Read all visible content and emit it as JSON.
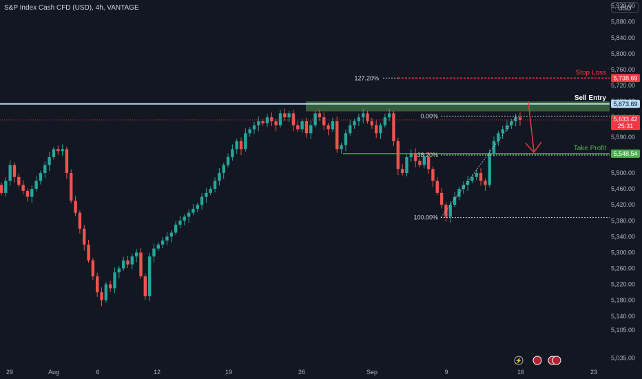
{
  "header": {
    "title": "S&P Index Cash CFD (USD), 4h, VANTAGE"
  },
  "currency": "USD",
  "colors": {
    "background": "#131722",
    "up": "#26a69a",
    "down": "#ef5350",
    "stop_loss": "#f23645",
    "take_profit": "#4caf50",
    "sell_entry": "#b2d8f5",
    "zone": "#3d6a3f",
    "current_price": "#f23645",
    "text": "#b2b5be"
  },
  "chart_data": {
    "type": "candlestick",
    "timeframe": "4h",
    "ylim": [
      5020,
      5950
    ],
    "y_ticks": [
      "5,920.00",
      "5,880.00",
      "5,840.00",
      "5,800.00",
      "5,760.00",
      "5,720.00",
      "5,680.00",
      "5,640.00",
      "5,590.00",
      "5,550.00",
      "5,500.00",
      "5,460.00",
      "5,420.00",
      "5,380.00",
      "5,340.00",
      "5,300.00",
      "5,260.00",
      "5,220.00",
      "5,180.00",
      "5,140.00",
      "5,105.00",
      "5,035.00"
    ],
    "x_ticks": [
      "29",
      "Aug",
      "6",
      "12",
      "19",
      "26",
      "Sep",
      "9",
      "16",
      "23"
    ],
    "levels": [
      {
        "name": "Stop Loss",
        "price": 5738.69,
        "label": "5,738.69"
      },
      {
        "name": "Sell Entry",
        "price": 5673.69,
        "label": "5,673.69"
      },
      {
        "name": "Take Profit",
        "price": 5548.54,
        "label": "5,548.54"
      }
    ],
    "current_price": {
      "label": "5,633.42",
      "countdown": "25:31"
    },
    "fib": [
      {
        "label": "127.20%",
        "price": 5738.69
      },
      {
        "label": "0.00%",
        "price": 5643
      },
      {
        "label": "38.20%",
        "price": 5545
      },
      {
        "label": "100.00%",
        "price": 5388
      }
    ],
    "candles_approx_close": [
      5450,
      5480,
      5520,
      5490,
      5470,
      5455,
      5440,
      5460,
      5480,
      5500,
      5520,
      5540,
      5560,
      5555,
      5560,
      5500,
      5430,
      5400,
      5360,
      5320,
      5280,
      5240,
      5200,
      5180,
      5220,
      5210,
      5250,
      5260,
      5280,
      5270,
      5290,
      5300,
      5240,
      5190,
      5290,
      5310,
      5320,
      5330,
      5340,
      5350,
      5370,
      5380,
      5390,
      5400,
      5410,
      5420,
      5440,
      5450,
      5460,
      5480,
      5500,
      5520,
      5540,
      5560,
      5580,
      5560,
      5600,
      5610,
      5620,
      5630,
      5625,
      5640,
      5630,
      5620,
      5650,
      5640,
      5650,
      5620,
      5610,
      5630,
      5600,
      5620,
      5650,
      5640,
      5620,
      5610,
      5630,
      5560,
      5570,
      5600,
      5620,
      5630,
      5640,
      5650,
      5630,
      5620,
      5600,
      5620,
      5640,
      5650,
      5580,
      5510,
      5500,
      5540,
      5550,
      5530,
      5520,
      5540,
      5510,
      5480,
      5450,
      5420,
      5390,
      5420,
      5440,
      5460,
      5470,
      5480,
      5490,
      5500,
      5480,
      5470,
      5550,
      5580,
      5600,
      5610,
      5620,
      5630,
      5640,
      5633.42
    ]
  }
}
